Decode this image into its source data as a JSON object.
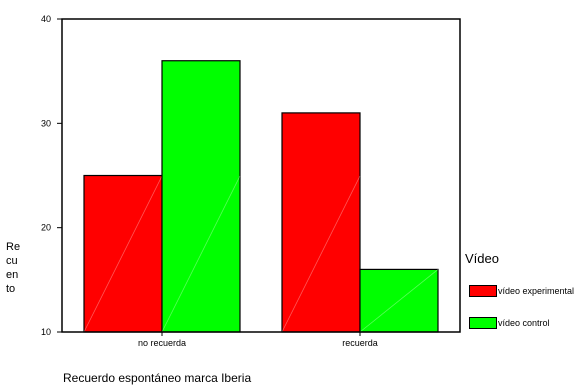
{
  "chart_data": {
    "type": "bar",
    "categories": [
      "no recuerda",
      "recuerda"
    ],
    "series": [
      {
        "name": "vídeo experimental",
        "values": [
          25,
          31
        ],
        "color": "#ff0000"
      },
      {
        "name": "vídeo control",
        "values": [
          36,
          16
        ],
        "color": "#00ff00"
      }
    ],
    "ylim": [
      10,
      40
    ],
    "yticks": [
      10,
      20,
      30,
      40
    ],
    "xlabel": "Recuerdo espontáneo marca  Iberia",
    "ylabel": "Re\ncu\nen\nto",
    "legend_title": "Vídeo",
    "legend_position": "right",
    "grid": false
  }
}
